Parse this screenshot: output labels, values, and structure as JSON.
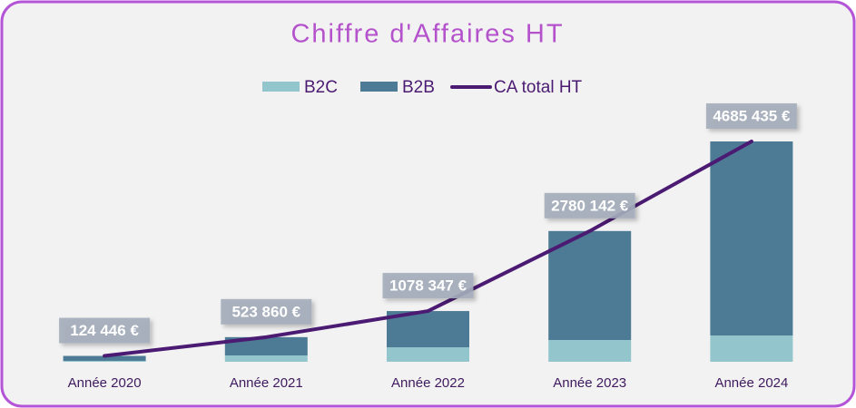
{
  "chart_data": {
    "type": "bar",
    "title": "Chiffre d'Affaires HT",
    "categories": [
      "Année 2020",
      "Année 2021",
      "Année 2022",
      "Année 2023",
      "Année 2024"
    ],
    "series": [
      {
        "name": "B2C",
        "color": "#92c5cc",
        "type": "bar",
        "values": [
          20000,
          135000,
          308000,
          463000,
          559000
        ]
      },
      {
        "name": "B2B",
        "color": "#4d7a94",
        "type": "bar",
        "values": [
          104446,
          388860,
          770347,
          2317142,
          4126435
        ]
      },
      {
        "name": "CA total HT",
        "color": "#4b1a72",
        "type": "line",
        "values": [
          124446,
          523860,
          1078347,
          2780142,
          4685435
        ],
        "value_labels": [
          "124 446 €",
          "523 860 €",
          "1078 347 €",
          "2780 142 €",
          "4685 435 €"
        ]
      }
    ],
    "stacked": true,
    "legend": "top"
  }
}
